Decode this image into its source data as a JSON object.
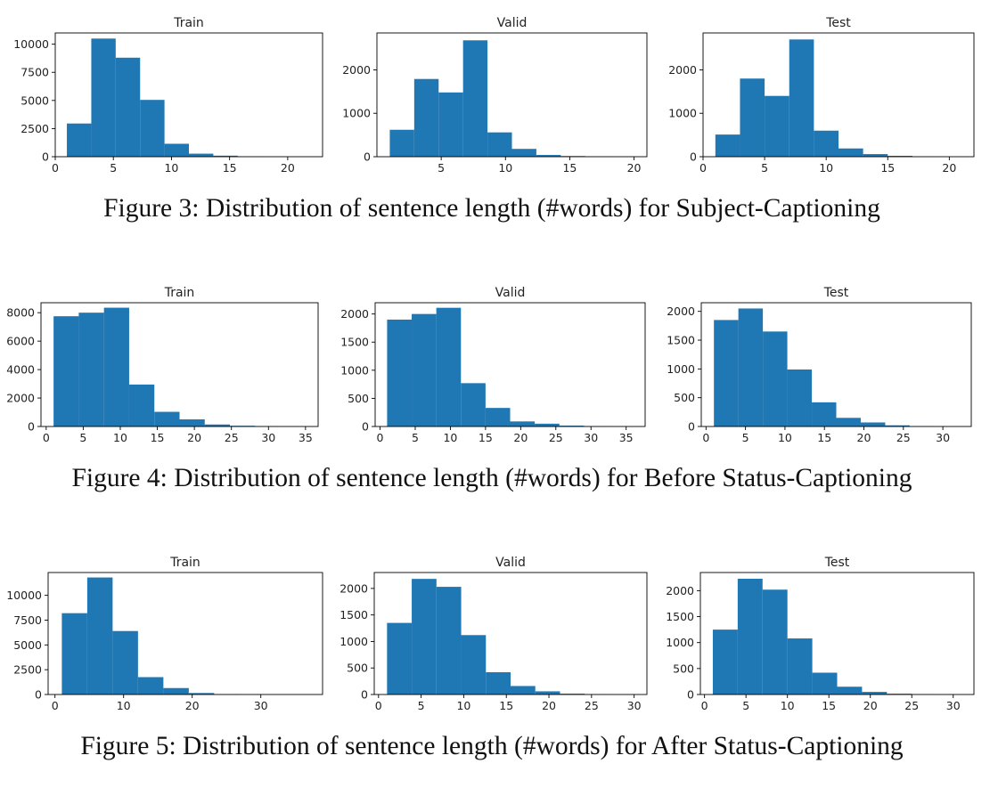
{
  "colors": {
    "bar": "#1f77b4",
    "axis": "#000000",
    "text": "#222222"
  },
  "figures": [
    {
      "caption": "Figure 3: Distribution of sentence length (#words) for Subject-Captioning",
      "panels": [
        {
          "title": "Train",
          "chart_data": {
            "type": "bar",
            "title": "Train",
            "xlabel": "",
            "ylabel": "",
            "xlim": [
              0,
              23
            ],
            "ylim": [
              0,
              11000
            ],
            "xticks": [
              0,
              5,
              10,
              15,
              20
            ],
            "yticks": [
              0,
              2500,
              5000,
              7500,
              10000
            ],
            "bin_edges": [
              1,
              3.1,
              5.2,
              7.3,
              9.4,
              11.5,
              13.6,
              15.7,
              17.8,
              19.9,
              22
            ],
            "values": [
              2950,
              10500,
              8800,
              5050,
              1150,
              270,
              90,
              20,
              10,
              5
            ]
          }
        },
        {
          "title": "Valid",
          "chart_data": {
            "type": "bar",
            "title": "Valid",
            "xlabel": "",
            "ylabel": "",
            "xlim": [
              0,
              21
            ],
            "ylim": [
              0,
              2850
            ],
            "xticks": [
              5,
              10,
              15,
              20
            ],
            "yticks": [
              0,
              1000,
              2000
            ],
            "bin_edges": [
              1,
              2.9,
              4.8,
              6.7,
              8.6,
              10.5,
              12.4,
              14.3,
              16.2,
              18.1,
              20
            ],
            "values": [
              620,
              1790,
              1480,
              2680,
              560,
              180,
              40,
              15,
              5,
              3
            ]
          }
        },
        {
          "title": "Test",
          "chart_data": {
            "type": "bar",
            "title": "Test",
            "xlabel": "",
            "ylabel": "",
            "xlim": [
              0,
              22
            ],
            "ylim": [
              0,
              2850
            ],
            "xticks": [
              0,
              5,
              10,
              15,
              20
            ],
            "yticks": [
              0,
              1000,
              2000
            ],
            "bin_edges": [
              1,
              3,
              5,
              7,
              9,
              11,
              13,
              15,
              17,
              19,
              21
            ],
            "values": [
              510,
              1800,
              1400,
              2700,
              600,
              190,
              60,
              20,
              5,
              3
            ]
          }
        }
      ]
    },
    {
      "caption": "Figure 4: Distribution of sentence length (#words) for Before Status-Captioning",
      "panels": [
        {
          "title": "Train",
          "chart_data": {
            "type": "bar",
            "title": "Train",
            "xlabel": "",
            "ylabel": "",
            "xlim": [
              -0.7,
              36.7
            ],
            "ylim": [
              0,
              8700
            ],
            "xticks": [
              0,
              5,
              10,
              15,
              20,
              25,
              30,
              35
            ],
            "yticks": [
              0,
              2000,
              4000,
              6000,
              8000
            ],
            "bin_edges": [
              1,
              4.4,
              7.8,
              11.2,
              14.6,
              18,
              21.4,
              24.8,
              28.2,
              31.6,
              35
            ],
            "values": [
              7750,
              8000,
              8350,
              2950,
              1030,
              500,
              140,
              50,
              15,
              5
            ]
          }
        },
        {
          "title": "Valid",
          "chart_data": {
            "type": "bar",
            "title": "Valid",
            "xlabel": "",
            "ylabel": "",
            "xlim": [
              -0.7,
              37.7
            ],
            "ylim": [
              0,
              2200
            ],
            "xticks": [
              0,
              5,
              10,
              15,
              20,
              25,
              30,
              35
            ],
            "yticks": [
              0,
              500,
              1000,
              1500,
              2000
            ],
            "bin_edges": [
              1,
              4.5,
              8,
              11.5,
              15,
              18.5,
              22,
              25.5,
              29,
              32.5,
              36
            ],
            "values": [
              1900,
              2000,
              2110,
              770,
              330,
              90,
              50,
              15,
              5,
              3
            ]
          }
        },
        {
          "title": "Test",
          "chart_data": {
            "type": "bar",
            "title": "Test",
            "xlabel": "",
            "ylabel": "",
            "xlim": [
              -0.6,
              33.6
            ],
            "ylim": [
              0,
              2150
            ],
            "xticks": [
              0,
              5,
              10,
              15,
              20,
              25,
              30
            ],
            "yticks": [
              0,
              500,
              1000,
              1500,
              2000
            ],
            "bin_edges": [
              1,
              4.1,
              7.2,
              10.3,
              13.4,
              16.5,
              19.6,
              22.7,
              25.8,
              28.9,
              32
            ],
            "values": [
              1850,
              2050,
              1650,
              990,
              420,
              150,
              70,
              20,
              5,
              3
            ]
          }
        }
      ]
    },
    {
      "caption": "Figure 5: Distribution of sentence length (#words) for After Status-Captioning",
      "panels": [
        {
          "title": "Train",
          "chart_data": {
            "type": "bar",
            "title": "Train",
            "xlabel": "",
            "ylabel": "",
            "xlim": [
              -1,
              39
            ],
            "ylim": [
              0,
              12300
            ],
            "xticks": [
              0,
              10,
              20,
              30
            ],
            "yticks": [
              0,
              2500,
              5000,
              7500,
              10000
            ],
            "bin_edges": [
              1,
              4.7,
              8.4,
              12.1,
              15.8,
              19.5,
              23.2,
              26.9,
              30.6,
              34.3,
              38
            ],
            "values": [
              8200,
              11800,
              6400,
              1750,
              650,
              150,
              40,
              15,
              8,
              5
            ]
          }
        },
        {
          "title": "Valid",
          "chart_data": {
            "type": "bar",
            "title": "Valid",
            "xlabel": "",
            "ylabel": "",
            "xlim": [
              -0.5,
              31.5
            ],
            "ylim": [
              0,
              2300
            ],
            "xticks": [
              0,
              5,
              10,
              15,
              20,
              25,
              30
            ],
            "yticks": [
              0,
              500,
              1000,
              1500,
              2000
            ],
            "bin_edges": [
              1,
              3.9,
              6.8,
              9.7,
              12.6,
              15.5,
              18.4,
              21.3,
              24.2,
              27.1,
              30
            ],
            "values": [
              1350,
              2180,
              2030,
              1120,
              420,
              160,
              60,
              15,
              5,
              3
            ]
          }
        },
        {
          "title": "Test",
          "chart_data": {
            "type": "bar",
            "title": "Test",
            "xlabel": "",
            "ylabel": "",
            "xlim": [
              -0.5,
              32.5
            ],
            "ylim": [
              0,
              2350
            ],
            "xticks": [
              0,
              5,
              10,
              15,
              20,
              25,
              30
            ],
            "yticks": [
              0,
              500,
              1000,
              1500,
              2000
            ],
            "bin_edges": [
              1,
              4,
              7,
              10,
              13,
              16,
              19,
              22,
              25,
              28,
              31
            ],
            "values": [
              1250,
              2230,
              2020,
              1080,
              420,
              150,
              50,
              15,
              5,
              3
            ]
          }
        }
      ]
    }
  ]
}
